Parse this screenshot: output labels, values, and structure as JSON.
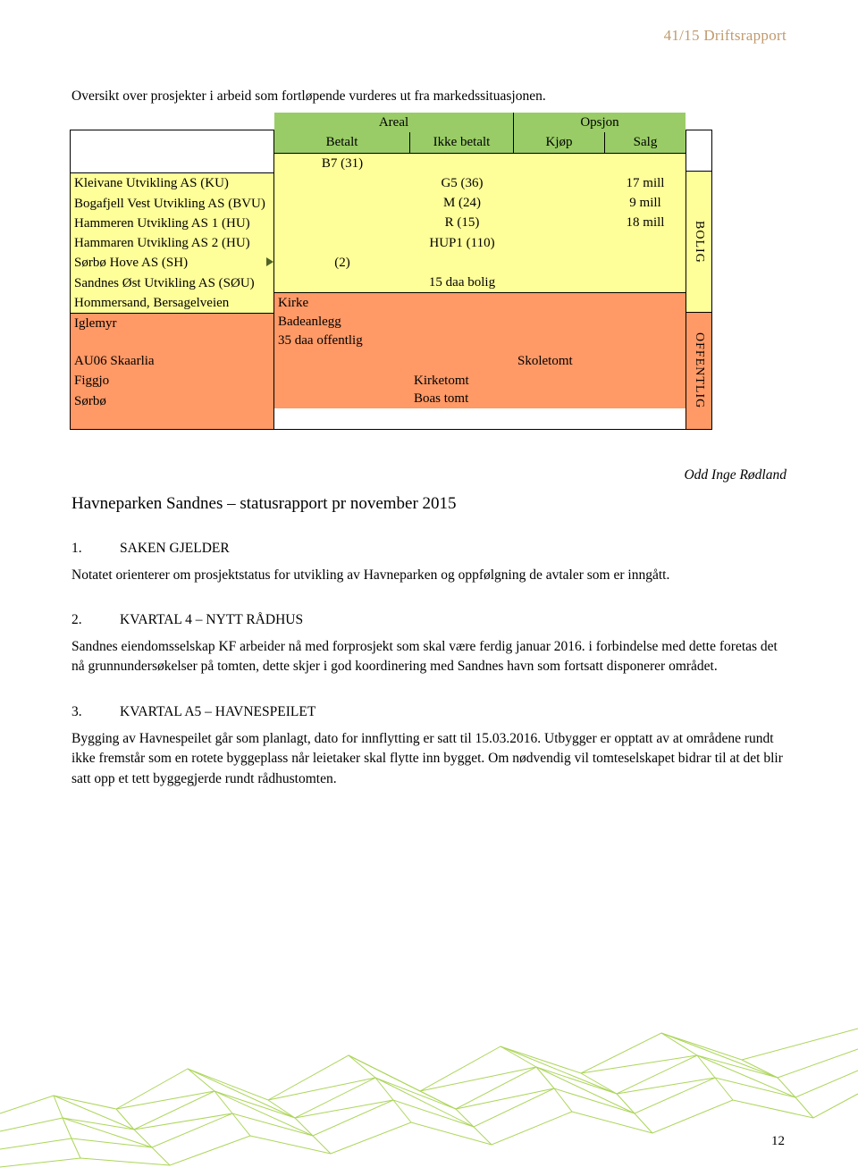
{
  "header": {
    "title": "41/15 Driftsrapport"
  },
  "intro": "Oversikt over prosjekter i arbeid som fortløpende vurderes ut fra markedssituasjonen.",
  "table": {
    "columns": {
      "areal": "Areal",
      "opsjon": "Opsjon",
      "betalt": "Betalt",
      "ikke_betalt": "Ikke betalt",
      "kjop": "Kjøp",
      "salg": "Salg"
    },
    "right_labels": {
      "bolig": "BOLIG",
      "offentlig": "OFFENTLIG"
    },
    "yellow_rows": [
      {
        "name": "Kleivane Utvikling AS (KU)",
        "betalt": "B7 (31)",
        "ikke": "",
        "kjop": "",
        "salg": ""
      },
      {
        "name": "Bogafjell Vest Utvikling AS (BVU)",
        "betalt": "",
        "ikke": "G5 (36)",
        "kjop": "",
        "salg": "17 mill"
      },
      {
        "name": "Hammeren Utvikling AS 1 (HU)",
        "betalt": "",
        "ikke": "M (24)",
        "kjop": "",
        "salg": "9 mill"
      },
      {
        "name": "Hammaren Utvikling AS 2 (HU)",
        "betalt": "",
        "ikke": "R (15)",
        "kjop": "",
        "salg": "18 mill"
      },
      {
        "name": "Sørbø Hove AS (SH)",
        "betalt": "",
        "ikke": "HUP1 (110)",
        "kjop": "",
        "salg": ""
      },
      {
        "name": "Sandnes Øst Utvikling AS (SØU)",
        "betalt": "(2)",
        "ikke": "",
        "kjop": "",
        "salg": ""
      },
      {
        "name": "Hommersand, Bersagelveien",
        "betalt": "",
        "ikke": "15 daa bolig",
        "kjop": "",
        "salg": ""
      }
    ],
    "orange_rows": [
      {
        "name": "Iglemyr",
        "betalt_line1": "Kirke",
        "betalt_line2": "Badeanlegg",
        "ikke": "",
        "kjop": "",
        "salg": ""
      },
      {
        "name": "AU06 Skaarlia",
        "betalt": "35 daa offentlig",
        "ikke": "",
        "kjop": "",
        "salg": ""
      },
      {
        "name": "Figgjo",
        "betalt": "",
        "ikke": "",
        "kjop": "Skoletomt",
        "salg": ""
      },
      {
        "name": "Sørbø",
        "betalt": "",
        "ikke_line1": "Kirketomt",
        "ikke_line2": "Boas tomt",
        "kjop": "",
        "salg": ""
      }
    ]
  },
  "author": "Odd Inge Rødland",
  "status_title": "Havneparken Sandnes – statusrapport pr november 2015",
  "sec1": {
    "num": "1.",
    "title": "SAKEN GJELDER",
    "body": "Notatet orienterer om prosjektstatus for utvikling av Havneparken og oppfølgning de avtaler som er inngått."
  },
  "sec2": {
    "num": "2.",
    "title": "KVARTAL 4 – NYTT RÅDHUS",
    "body": "Sandnes eiendomsselskap KF arbeider nå med forprosjekt som skal være ferdig januar 2016. i forbindelse med dette foretas det nå grunnundersøkelser på tomten, dette skjer i god koordinering med Sandnes havn som fortsatt disponerer området."
  },
  "sec3": {
    "num": "3.",
    "title": "KVARTAL A5 – HAVNESPEILET",
    "body": "Bygging av Havnespeilet går som planlagt, dato for innflytting er satt til 15.03.2016. Utbygger er opptatt av at områdene rundt ikke fremstår som en rotete byggeplass når leietaker skal flytte inn bygget. Om nødvendig vil tomteselskapet bidrar til at det blir satt opp et tett byggegjerde rundt rådhustomten."
  },
  "page_number": "12",
  "colors": {
    "header_text": "#c09a6d",
    "green": "#99cc66",
    "yellow": "#ffff99",
    "orange": "#ff9966",
    "mesh_stroke": "#99cc33"
  }
}
